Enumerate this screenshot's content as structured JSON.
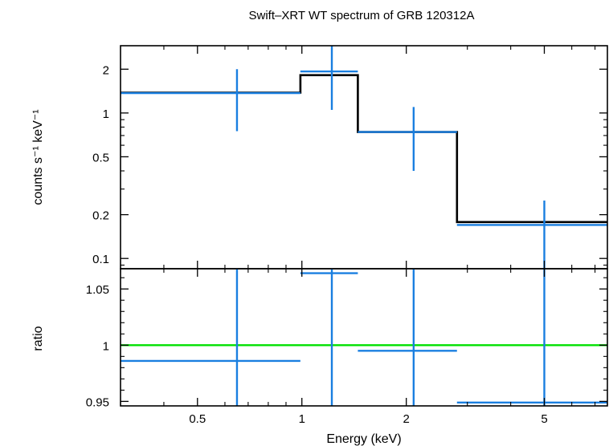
{
  "chart_data": [
    {
      "type": "line",
      "title": "Swift–XRT WT spectrum of GRB 120312A",
      "xlabel": "Energy (keV)",
      "ylabel": "counts s⁻¹ keV⁻¹",
      "xscale": "log",
      "yscale": "log",
      "xlim": [
        0.3,
        7.6
      ],
      "ylim": [
        0.085,
        2.9
      ],
      "xticks": [
        0.5,
        1,
        2,
        5
      ],
      "xticklabels": [
        "0.5",
        "1",
        "2",
        "5"
      ],
      "yticks": [
        0.1,
        0.2,
        0.5,
        1,
        2
      ],
      "yticklabels": [
        "0.1",
        "0.2",
        "0.5",
        "1",
        "2"
      ],
      "series": [
        {
          "kind": "data",
          "color": "#1a7fe0",
          "points": [
            {
              "xlo": 0.3,
              "xhi": 0.99,
              "x": 0.65,
              "y": 1.37,
              "ylo": 0.75,
              "yhi": 2.0
            },
            {
              "xlo": 0.99,
              "xhi": 1.45,
              "x": 1.22,
              "y": 1.93,
              "ylo": 1.05,
              "yhi": 2.9
            },
            {
              "xlo": 2.8,
              "xhi": 7.6,
              "x": 5.0,
              "y": 0.17,
              "ylo": 0.085,
              "yhi": 0.25
            }
          ]
        },
        {
          "kind": "data",
          "color": "#1a7fe0",
          "points": [
            {
              "xlo": 1.45,
              "xhi": 2.8,
              "x": 2.1,
              "y": 0.74,
              "ylo": 0.4,
              "yhi": 1.1
            }
          ]
        },
        {
          "kind": "model",
          "color": "#000000",
          "steps": [
            {
              "xlo": 0.3,
              "xhi": 0.99,
              "y": 1.38
            },
            {
              "xlo": 0.99,
              "xhi": 1.45,
              "y": 1.82
            },
            {
              "xlo": 1.45,
              "xhi": 2.8,
              "y": 0.74
            },
            {
              "xlo": 2.8,
              "xhi": 7.6,
              "y": 0.178
            }
          ]
        }
      ]
    },
    {
      "type": "line",
      "xlabel": "Energy (keV)",
      "ylabel": "ratio",
      "xscale": "log",
      "xlim": [
        0.3,
        7.6
      ],
      "ylim": [
        0.946,
        1.068
      ],
      "yticks": [
        0.95,
        1,
        1.05
      ],
      "yticklabels": [
        "0.95",
        "1",
        "1.05"
      ],
      "reference_line": {
        "y": 1,
        "color": "#00e000"
      },
      "series": [
        {
          "kind": "data",
          "color": "#1a7fe0",
          "points": [
            {
              "xlo": 0.3,
              "xhi": 0.99,
              "x": 0.65,
              "y": 0.986,
              "ylo": 0.946,
              "yhi": 1.068
            },
            {
              "xlo": 0.99,
              "xhi": 1.45,
              "x": 1.22,
              "y": 1.064,
              "ylo": 0.946,
              "yhi": 1.068
            },
            {
              "xlo": 1.45,
              "xhi": 2.8,
              "x": 2.1,
              "y": 0.995,
              "ylo": 0.946,
              "yhi": 1.068
            },
            {
              "xlo": 2.8,
              "xhi": 7.6,
              "x": 5.0,
              "y": 0.949,
              "ylo": 0.946,
              "yhi": 1.068
            }
          ]
        }
      ]
    }
  ]
}
